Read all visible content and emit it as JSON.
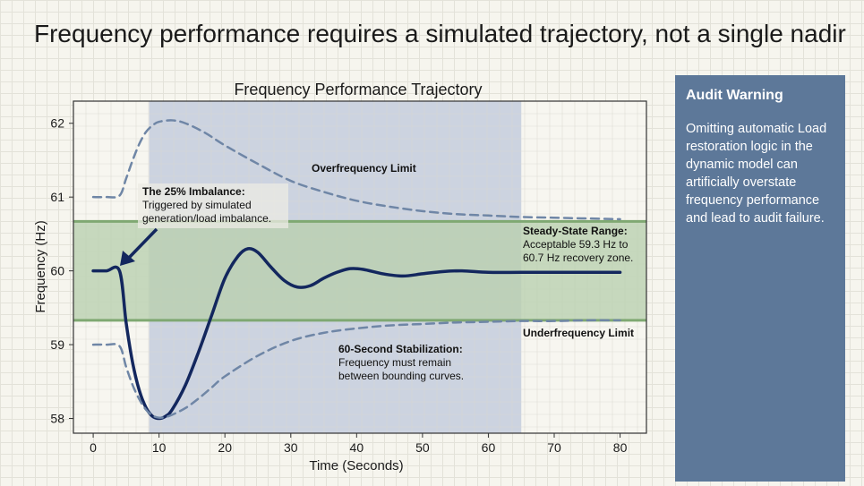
{
  "slide_title": "Frequency performance requires a simulated trajectory, not a single nadir",
  "audit": {
    "title": "Audit Warning",
    "body": "Omitting automatic Load restoration logic in the dynamic model can artificially overstate frequency performance and lead to audit failure."
  },
  "colors": {
    "trajectory": "#13275e",
    "bound": "#6f86a6",
    "band": "#b9cfae",
    "band_edge": "#7fa872",
    "highlight": "#c4cddd",
    "panel": "#5d7899"
  },
  "chart_data": {
    "type": "line",
    "title": "Frequency Performance Trajectory",
    "xlabel": "Time (Seconds)",
    "ylabel": "Frequency (Hz)",
    "xlim": [
      -3,
      84
    ],
    "ylim": [
      57.8,
      62.3
    ],
    "xticks": [
      0,
      10,
      20,
      30,
      40,
      50,
      60,
      70,
      80
    ],
    "yticks": [
      58,
      59,
      60,
      61,
      62
    ],
    "grid": true,
    "highlight_region": {
      "x": [
        8.5,
        65
      ]
    },
    "steady_state_band": {
      "y": [
        59.33,
        60.67
      ]
    },
    "series": [
      {
        "style": "solid",
        "x": [
          0,
          2,
          4,
          5,
          6,
          7,
          8,
          9,
          10,
          11,
          12,
          14,
          16,
          18,
          20,
          22,
          23.5,
          25,
          27,
          29,
          31,
          33,
          35,
          37,
          39,
          41,
          44,
          47,
          50,
          53,
          56,
          60,
          65,
          70,
          75,
          80
        ],
        "y": [
          60,
          60,
          60,
          59.3,
          58.75,
          58.38,
          58.15,
          58.03,
          58.0,
          58.03,
          58.12,
          58.45,
          58.9,
          59.4,
          59.9,
          60.2,
          60.3,
          60.25,
          60.05,
          59.87,
          59.78,
          59.8,
          59.9,
          59.98,
          60.03,
          60.02,
          59.96,
          59.93,
          59.96,
          59.99,
          60.0,
          59.98,
          59.98,
          59.98,
          59.98,
          59.98
        ]
      },
      {
        "style": "dashed",
        "x": [
          0,
          2,
          4,
          5,
          6,
          7,
          8,
          9,
          10,
          12,
          14,
          17,
          20,
          25,
          30,
          35,
          40,
          45,
          50,
          55,
          60,
          65,
          70,
          75,
          80
        ],
        "y": [
          61,
          61,
          61.02,
          61.25,
          61.5,
          61.72,
          61.88,
          61.97,
          62.02,
          62.04,
          62.0,
          61.87,
          61.7,
          61.45,
          61.22,
          61.07,
          60.95,
          60.87,
          60.81,
          60.77,
          60.75,
          60.73,
          60.72,
          60.71,
          60.7
        ]
      },
      {
        "style": "dashed",
        "x": [
          0,
          2,
          4,
          5,
          6,
          7,
          8,
          9,
          10,
          11,
          12,
          14,
          16,
          18,
          20,
          25,
          30,
          35,
          40,
          45,
          50,
          55,
          60,
          65,
          70,
          75,
          80
        ],
        "y": [
          59,
          59,
          58.98,
          58.7,
          58.45,
          58.26,
          58.12,
          58.04,
          58.01,
          58.02,
          58.05,
          58.14,
          58.27,
          58.42,
          58.57,
          58.85,
          59.05,
          59.16,
          59.22,
          59.26,
          59.28,
          59.3,
          59.31,
          59.32,
          59.32,
          59.33,
          59.33
        ]
      }
    ],
    "annotations": {
      "imbalance_title": "The 25% Imbalance:",
      "imbalance_line1": "Triggered by simulated",
      "imbalance_line2": "generation/load imbalance.",
      "over_limit": "Overfrequency Limit",
      "steady_title": "Steady-State Range:",
      "steady_line1": "Acceptable 59.3 Hz to",
      "steady_line2": "60.7 Hz recovery zone.",
      "under_limit": "Underfrequency Limit",
      "stab_title": "60-Second Stabilization:",
      "stab_line1": "Frequency must remain",
      "stab_line2": "between bounding curves."
    }
  }
}
